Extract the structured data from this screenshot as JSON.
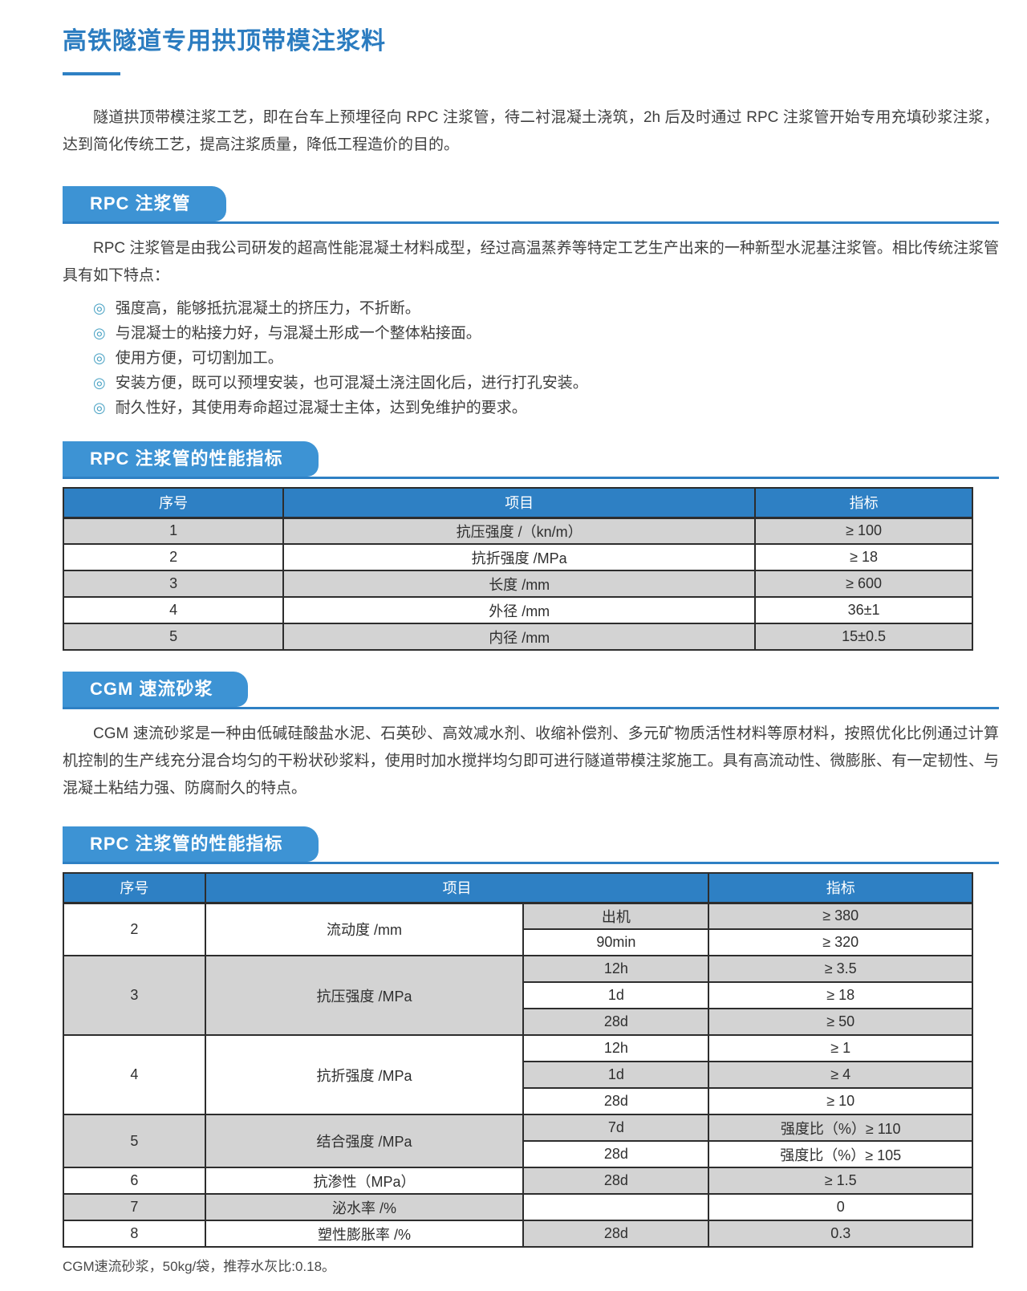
{
  "colors": {
    "accent_blue": "#2e80c4",
    "badge_blue": "#3d93d4",
    "title_blue": "#2b7cc0",
    "row_gray": "#d3d3d3",
    "bullet_teal": "#4aa2c4"
  },
  "header": {
    "title": "高铁隧道专用拱顶带模注浆料"
  },
  "intro": "隧道拱顶带模注浆工艺，即在台车上预埋径向 RPC 注浆管，待二衬混凝土浇筑，2h 后及时通过 RPC 注浆管开始专用充填砂浆注浆，达到简化传统工艺，提高注浆质量，降低工程造价的目的。",
  "sections": {
    "rpc": {
      "badge": "RPC 注浆管",
      "paragraph": "RPC 注浆管是由我公司研发的超高性能混凝土材料成型，经过高温蒸养等特定工艺生产出来的一种新型水泥基注浆管。相比传统注浆管具有如下特点：",
      "bullet_icon": "◎",
      "bullets": [
        "强度高，能够抵抗混凝土的挤压力，不折断。",
        "与混凝士的粘接力好，与混凝土形成一个整体粘接面。",
        "使用方便，可切割加工。",
        "安装方便，既可以预埋安装，也可混凝土浇注固化后，进行打孔安装。",
        "耐久性好，其使用寿命超过混凝士主体，达到免维护的要求。"
      ]
    },
    "rpc_specs": {
      "badge": "RPC 注浆管的性能指标",
      "table": {
        "headers": [
          "序号",
          "项目",
          "指标"
        ],
        "rows": [
          [
            "1",
            "抗压强度 /（kn/m）",
            "≥ 100"
          ],
          [
            "2",
            "抗折强度 /MPa",
            "≥ 18"
          ],
          [
            "3",
            "长度 /mm",
            "≥ 600"
          ],
          [
            "4",
            "外径 /mm",
            "36±1"
          ],
          [
            "5",
            "内径 /mm",
            "15±0.5"
          ]
        ]
      }
    },
    "cgm": {
      "badge": "CGM 速流砂浆",
      "paragraph": "CGM 速流砂浆是一种由低碱硅酸盐水泥、石英砂、高效减水剂、收缩补偿剂、多元矿物质活性材料等原材料，按照优化比例通过计算机控制的生产线充分混合均匀的干粉状砂浆料，使用时加水搅拌均匀即可进行隧道带模注浆施工。具有高流动性、微膨胀、有一定韧性、与混凝土粘结力强、防腐耐久的特点。"
    },
    "cgm_specs": {
      "badge": "RPC 注浆管的性能指标",
      "table": {
        "headers": [
          "序号",
          "项目",
          "指标"
        ],
        "groups": [
          {
            "no": "2",
            "item": "流动度 /mm",
            "subs": [
              {
                "time": "出机",
                "value": "≥ 380"
              },
              {
                "time": "90min",
                "value": "≥ 320"
              }
            ]
          },
          {
            "no": "3",
            "item": "抗压强度 /MPa",
            "subs": [
              {
                "time": "12h",
                "value": "≥ 3.5"
              },
              {
                "time": "1d",
                "value": "≥ 18"
              },
              {
                "time": "28d",
                "value": "≥ 50"
              }
            ]
          },
          {
            "no": "4",
            "item": "抗折强度 /MPa",
            "subs": [
              {
                "time": "12h",
                "value": "≥ 1"
              },
              {
                "time": "1d",
                "value": "≥ 4"
              },
              {
                "time": "28d",
                "value": "≥ 10"
              }
            ]
          },
          {
            "no": "5",
            "item": "结合强度 /MPa",
            "subs": [
              {
                "time": "7d",
                "value": "强度比（%）≥ 110"
              },
              {
                "time": "28d",
                "value": "强度比（%）≥ 105"
              }
            ]
          },
          {
            "no": "6",
            "item": "抗渗性（MPa）",
            "subs": [
              {
                "time": "28d",
                "value": "≥ 1.5"
              }
            ]
          },
          {
            "no": "7",
            "item": "泌水率 /%",
            "subs": [
              {
                "time": "",
                "value": "0"
              }
            ]
          },
          {
            "no": "8",
            "item": "塑性膨胀率 /%",
            "subs": [
              {
                "time": "28d",
                "value": "0.3"
              }
            ]
          }
        ]
      }
    }
  },
  "footnote": "CGM速流砂浆，50kg/袋，推荐水灰比:0.18。"
}
